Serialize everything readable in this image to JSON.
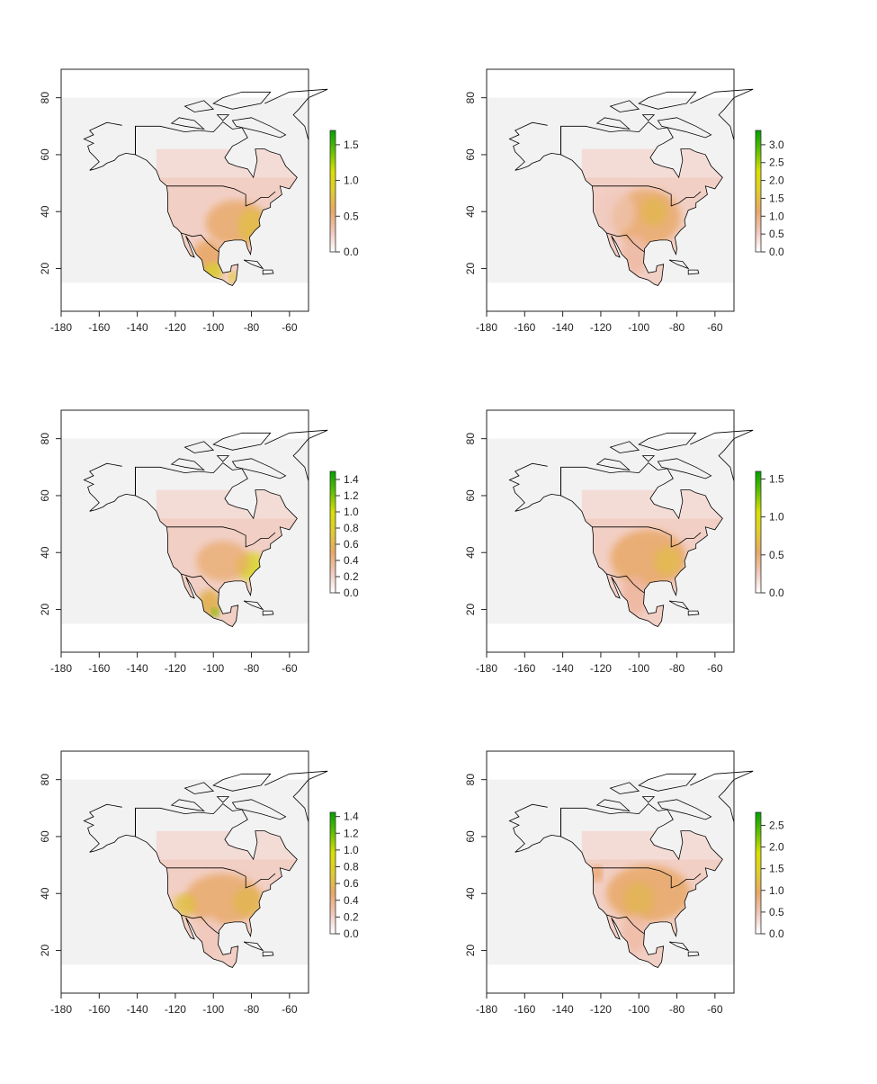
{
  "axes": {
    "x_ticks": [
      -180,
      -160,
      -140,
      -120,
      -100,
      -80,
      -60
    ],
    "y_ticks": [
      20,
      40,
      60,
      80
    ],
    "xlim": [
      -180,
      -50
    ],
    "ylim": [
      5,
      90
    ],
    "raster_extent": {
      "lon": [
        -180,
        -50
      ],
      "lat": [
        15,
        80
      ]
    }
  },
  "colors": {
    "background_raster": "#f2f2f2",
    "coastline": "#000000",
    "scale": [
      "#ffffff",
      "#f0c8bc",
      "#e8a868",
      "#e0cc30",
      "#d8e000",
      "#60c000",
      "#00a000"
    ]
  },
  "panels": [
    {
      "legend_max": 1.7,
      "legend_ticks": [
        "0.0",
        "0.5",
        "1.0",
        "1.5"
      ]
    },
    {
      "legend_max": 3.4,
      "legend_ticks": [
        "0.0",
        "0.5",
        "1.0",
        "1.5",
        "2.0",
        "2.5",
        "3.0"
      ]
    },
    {
      "legend_max": 1.5,
      "legend_ticks": [
        "0.0",
        "0.2",
        "0.4",
        "0.6",
        "0.8",
        "1.0",
        "1.2",
        "1.4"
      ]
    },
    {
      "legend_max": 1.6,
      "legend_ticks": [
        "0.0",
        "0.5",
        "1.0",
        "1.5"
      ]
    },
    {
      "legend_max": 1.45,
      "legend_ticks": [
        "0.0",
        "0.2",
        "0.4",
        "0.6",
        "0.8",
        "1.0",
        "1.2",
        "1.4"
      ]
    },
    {
      "legend_max": 2.8,
      "legend_ticks": [
        "0.0",
        "0.5",
        "1.0",
        "1.5",
        "2.0",
        "2.5"
      ]
    }
  ]
}
